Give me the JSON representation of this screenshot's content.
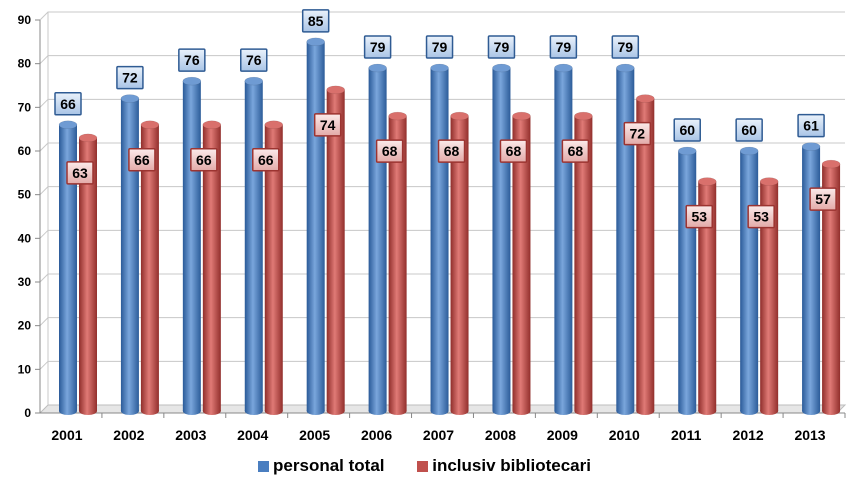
{
  "chart_data": {
    "type": "bar",
    "categories": [
      "2001",
      "2002",
      "2003",
      "2004",
      "2005",
      "2006",
      "2007",
      "2008",
      "2009",
      "2010",
      "2011",
      "2012",
      "2013"
    ],
    "series": [
      {
        "name": "personal total",
        "color": "#4a7ec0",
        "values": [
          66,
          72,
          76,
          76,
          85,
          79,
          79,
          79,
          79,
          79,
          60,
          60,
          61
        ]
      },
      {
        "name": "inclusiv bibliotecari",
        "color": "#c0504d",
        "values": [
          63,
          66,
          66,
          66,
          74,
          68,
          68,
          68,
          68,
          72,
          53,
          53,
          57
        ]
      }
    ],
    "ylim": [
      0,
      90
    ],
    "yticks": [
      0,
      10,
      20,
      30,
      40,
      50,
      60,
      70,
      80,
      90
    ],
    "grid": true,
    "legend_position": "bottom",
    "data_labels": true,
    "title": "",
    "xlabel": "",
    "ylabel": ""
  }
}
